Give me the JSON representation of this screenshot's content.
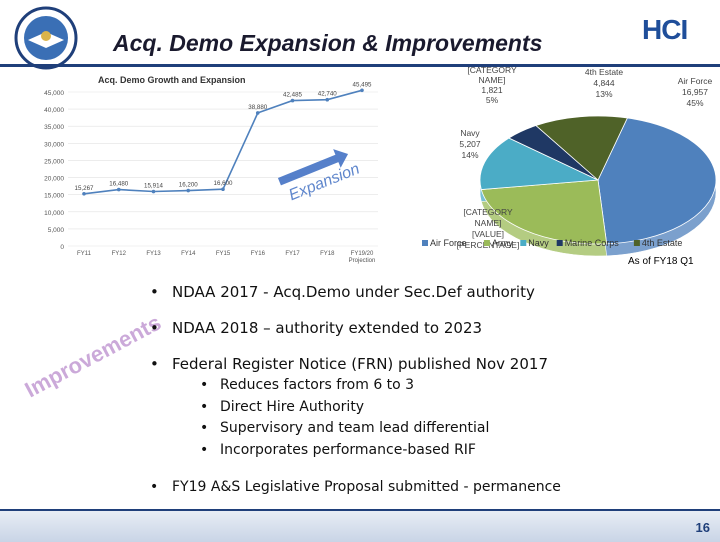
{
  "header": {
    "title": "Acq. Demo Expansion & Improvements",
    "logo_text": "HCI"
  },
  "line_chart_title": "Acq. Demo Growth and Expansion",
  "expansion_label": "Expansion",
  "improvements_label": "Improvements",
  "chart_data": [
    {
      "type": "line",
      "title": "Acq. Demo Growth and Expansion",
      "categories": [
        "FY11",
        "FY12",
        "FY13",
        "FY14",
        "FY15",
        "FY16",
        "FY17",
        "FY18",
        "FY19/20 Projection"
      ],
      "values": [
        15267,
        16480,
        15914,
        16200,
        16600,
        38880,
        42485,
        42740,
        45495
      ],
      "data_labels": [
        "15,267",
        "16,480",
        "15,914",
        "16,200",
        "16,600",
        "38,880",
        "42,485",
        "42,740",
        "45,495"
      ],
      "ylim": [
        0,
        45000
      ],
      "y_ticks": [
        "0",
        "5,000",
        "10,000",
        "15,000",
        "20,000",
        "25,000",
        "30,000",
        "35,000",
        "40,000",
        "45,000"
      ],
      "line_color": "#4f81bd"
    },
    {
      "type": "pie",
      "categories": [
        "Air Force",
        "Army",
        "Navy",
        "Marine Corps",
        "4th Estate"
      ],
      "values": [
        16957,
        9000,
        5207,
        1821,
        4844
      ],
      "labels": [
        "Air Force 16,957 45%",
        "[CATEGORY NAME] [VALUE] [PERCENTAGE]",
        "Navy 5,207 14%",
        "[CATEGORY NAME] 1,821 5%",
        "4th Estate 4,844 13%"
      ],
      "colors": [
        "#4f81bd",
        "#9bbb59",
        "#4bacc6",
        "#1f3864",
        "#4f6228"
      ],
      "legend": [
        "Air Force",
        "Army",
        "Navy",
        "Marine Corps",
        "4th Estate"
      ],
      "legend_position": "bottom"
    }
  ],
  "as_of": "As of FY18 Q1",
  "bullets": [
    "NDAA 2017 - Acq.Demo under Sec.Def authority",
    "NDAA 2018 – authority extended to 2023",
    "Federal Register Notice (FRN) published Nov 2017",
    "FY19 A&S Legislative Proposal submitted - permanence"
  ],
  "sub_bullets": [
    "Reduces factors from 6 to 3",
    "Direct Hire Authority",
    "Supervisory and team lead differential",
    "Incorporates performance-based RIF"
  ],
  "page_number": "16"
}
